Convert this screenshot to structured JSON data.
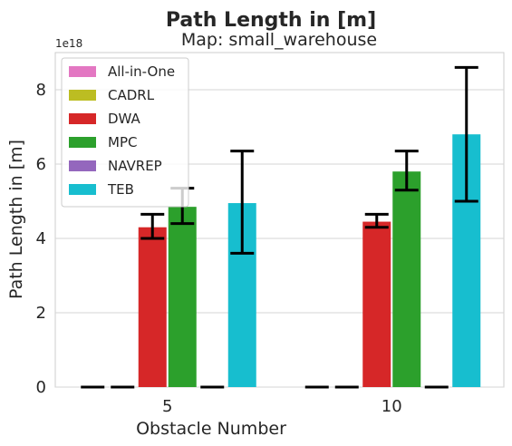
{
  "chart_data": {
    "type": "bar",
    "title": "Path Length in [m]",
    "subtitle": "Map: small_warehouse",
    "xlabel": "Obstacle Number",
    "ylabel": "Path Length in [m]",
    "y_offset_label": "1e18",
    "categories": [
      "5",
      "10"
    ],
    "ylim": [
      0,
      9
    ],
    "yticks": [
      0,
      2,
      4,
      6,
      8
    ],
    "grid": true,
    "legend_position": "top-left",
    "series": [
      {
        "name": "All-in-One",
        "color": "#e377c2",
        "values": [
          0,
          0
        ],
        "err_low": [
          0,
          0
        ],
        "err_high": [
          0,
          0
        ]
      },
      {
        "name": "CADRL",
        "color": "#bcbd22",
        "values": [
          0,
          0
        ],
        "err_low": [
          0,
          0
        ],
        "err_high": [
          0,
          0
        ]
      },
      {
        "name": "DWA",
        "color": "#d62728",
        "values": [
          4.3,
          4.45
        ],
        "err_low": [
          4.0,
          4.3
        ],
        "err_high": [
          4.65,
          4.65
        ]
      },
      {
        "name": "MPC",
        "color": "#2ca02c",
        "values": [
          4.85,
          5.8
        ],
        "err_low": [
          4.4,
          5.3
        ],
        "err_high": [
          5.35,
          6.35
        ]
      },
      {
        "name": "NAVREP",
        "color": "#9467bd",
        "values": [
          0,
          0
        ],
        "err_low": [
          0,
          0
        ],
        "err_high": [
          0,
          0
        ]
      },
      {
        "name": "TEB",
        "color": "#17becf",
        "values": [
          4.95,
          6.8
        ],
        "err_low": [
          3.6,
          5.0
        ],
        "err_high": [
          6.35,
          8.6
        ]
      }
    ]
  }
}
